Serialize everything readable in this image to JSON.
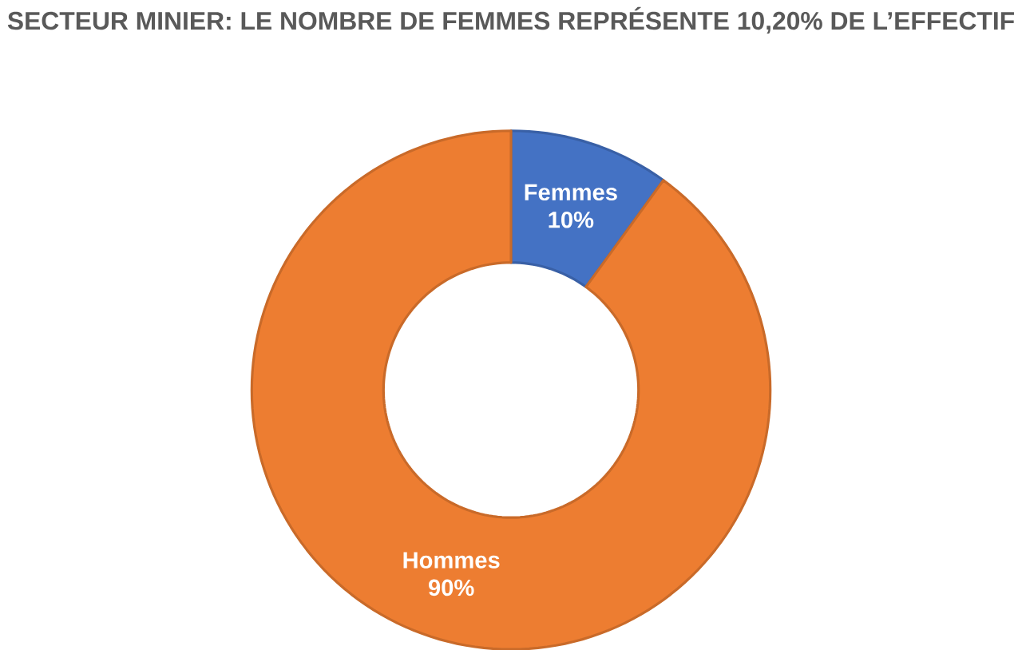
{
  "chart_data": {
    "type": "donut",
    "title": "SECTEUR MINIER: LE NOMBRE DE FEMMES REPRÉSENTE 10,20% DE L’EFFECTIF",
    "categories": [
      "Femmes",
      "Hommes"
    ],
    "values": [
      10,
      90
    ],
    "colors": [
      "#4472c4",
      "#ed7d31"
    ],
    "value_labels": [
      "10%",
      "90%"
    ]
  }
}
